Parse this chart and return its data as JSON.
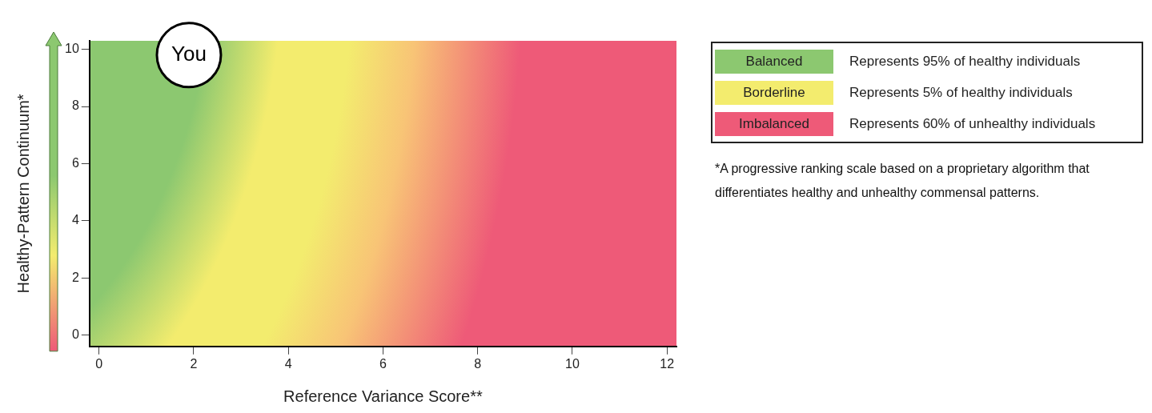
{
  "chart_data": {
    "type": "scatter",
    "xlabel": "Reference Variance Score**",
    "ylabel": "Healthy-Pattern Continuum*",
    "xlim": [
      -0.2,
      12.2
    ],
    "xticks": [
      0,
      2,
      4,
      6,
      8,
      10,
      12
    ],
    "ylim": [
      -0.4,
      10.3
    ],
    "yticks": [
      0,
      2,
      4,
      6,
      8,
      10
    ],
    "grid": false,
    "marker": "circle",
    "series": [
      {
        "color": "#ffffff",
        "x": [
          1.9
        ],
        "values": [
          9.8
        ]
      }
    ],
    "annotations": [
      "Balanced",
      "Represents 95% of healthy individuals",
      "Borderline",
      "Represents 5% of healthy individuals",
      "Imbalanced",
      "Represents 60% of unhealthy individuals",
      "*A progressive ranking scale based on a proprietary algorithm that differentiates healthy and unhealthy commensal patterns.",
      {
        "text": "You",
        "x": 1.9,
        "y": 9.8
      }
    ]
  }
}
